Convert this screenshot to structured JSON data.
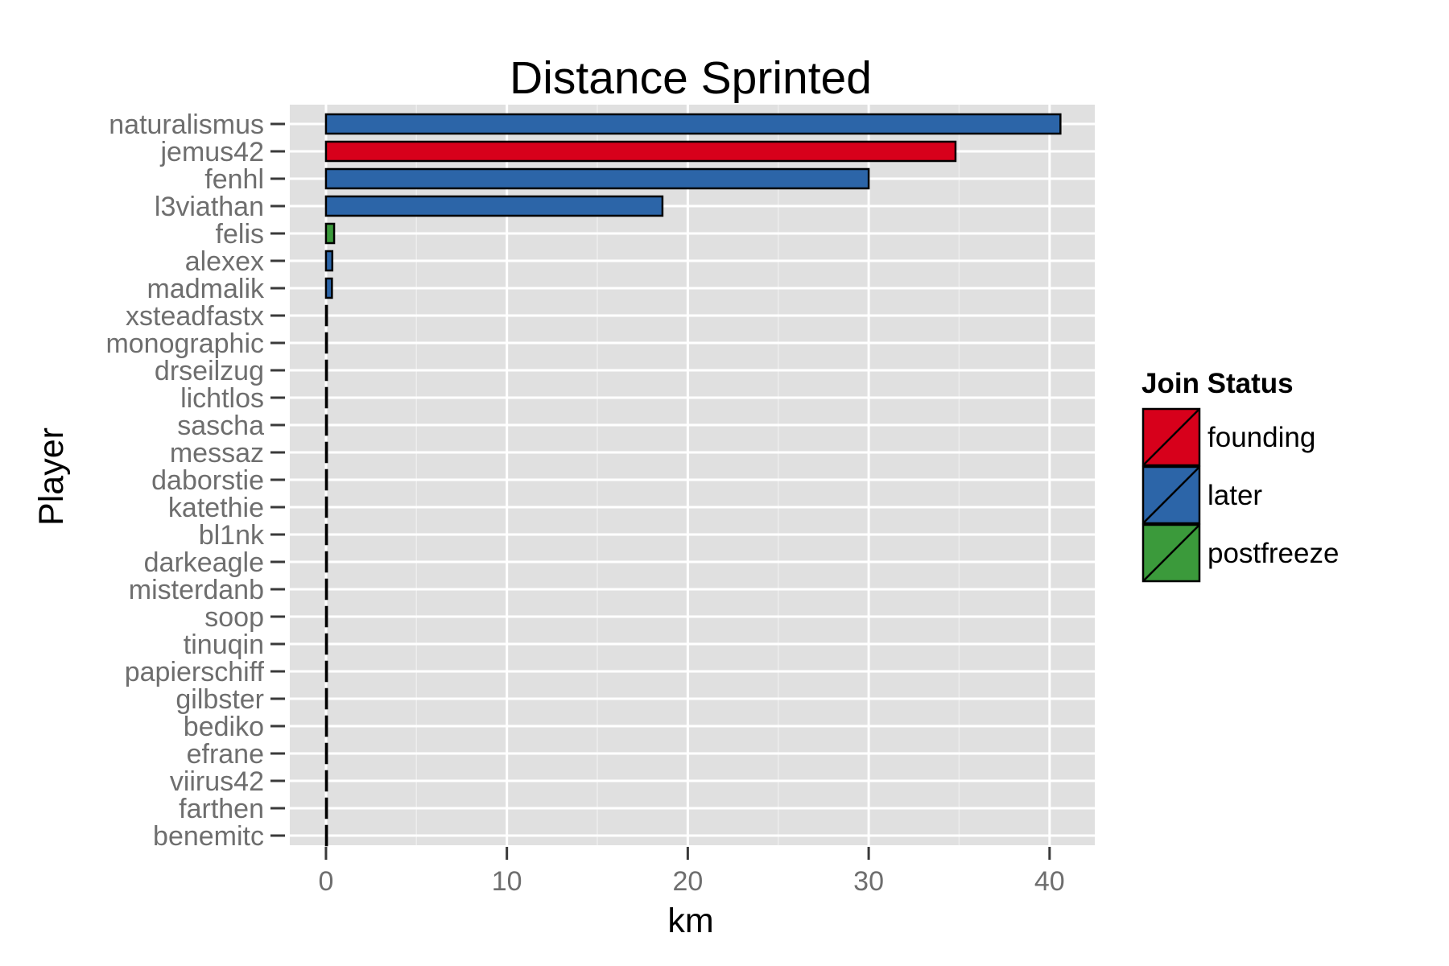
{
  "chart_data": {
    "type": "bar",
    "orientation": "horizontal",
    "title": "Distance Sprinted",
    "xlabel": "km",
    "ylabel": "Player",
    "xlim": [
      -2,
      42.5
    ],
    "xticks": [
      0,
      10,
      20,
      30,
      40
    ],
    "grid": true,
    "legend": {
      "title": "Join Status",
      "position": "right",
      "entries": [
        {
          "label": "founding",
          "color": "#d7001b"
        },
        {
          "label": "later",
          "color": "#2c65a8"
        },
        {
          "label": "postfreeze",
          "color": "#3b9a3b"
        }
      ]
    },
    "categories": [
      "naturalismus",
      "jemus42",
      "fenhl",
      "l3viathan",
      "felis",
      "alexex",
      "madmalik",
      "xsteadfastx",
      "monographic",
      "drseilzug",
      "lichtlos",
      "sascha",
      "messaz",
      "daborstie",
      "katethie",
      "bl1nk",
      "darkeagle",
      "misterdanb",
      "soop",
      "tinuqin",
      "papierschiff",
      "gilbster",
      "bediko",
      "efrane",
      "viirus42",
      "farthen",
      "benemitc"
    ],
    "values": [
      40.6,
      34.8,
      30.0,
      18.6,
      0.45,
      0.35,
      0.33,
      0.03,
      0.02,
      0.02,
      0.02,
      0.02,
      0.02,
      0.02,
      0.02,
      0.02,
      0.02,
      0.02,
      0.02,
      0.02,
      0.02,
      0.02,
      0.02,
      0.02,
      0.02,
      0.02,
      0.02
    ],
    "status": [
      "later",
      "founding",
      "later",
      "later",
      "postfreeze",
      "later",
      "later",
      "later",
      "later",
      "later",
      "later",
      "later",
      "later",
      "later",
      "later",
      "later",
      "later",
      "later",
      "later",
      "later",
      "later",
      "later",
      "later",
      "later",
      "later",
      "later",
      "later"
    ]
  }
}
